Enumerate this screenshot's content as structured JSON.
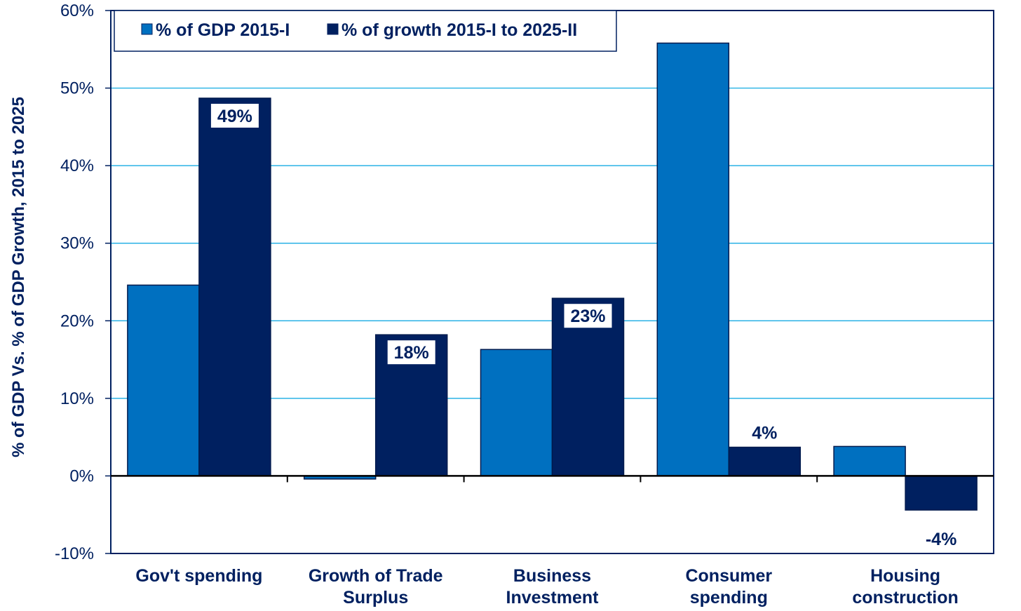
{
  "chart_data": {
    "type": "bar",
    "ylabel": "% of GDP Vs. % of GDP Growth, 2015 to 2025",
    "ylim": [
      -10,
      60
    ],
    "yticks": [
      -10,
      0,
      10,
      20,
      30,
      40,
      50,
      60
    ],
    "ytick_labels": [
      "-10%",
      "0%",
      "10%",
      "20%",
      "30%",
      "40%",
      "50%",
      "60%"
    ],
    "grid": true,
    "legend_position": "top-left",
    "categories": [
      [
        "Gov't spending"
      ],
      [
        "Growth of Trade",
        "Surplus"
      ],
      [
        "Business",
        "Investment"
      ],
      [
        "Consumer",
        "spending"
      ],
      [
        "Housing",
        "construction"
      ]
    ],
    "series": [
      {
        "name": "% of GDP 2015-I",
        "color": "#0070C0",
        "values": [
          24.6,
          -0.4,
          16.3,
          55.8,
          3.8
        ],
        "labels": [
          "",
          "",
          "",
          "",
          ""
        ]
      },
      {
        "name": "% of growth 2015-I to 2025-II",
        "color": "#002060",
        "values": [
          48.7,
          18.2,
          22.9,
          3.7,
          -4.4
        ],
        "labels": [
          "49%",
          "18%",
          "23%",
          "4%",
          "-4%"
        ]
      }
    ]
  }
}
